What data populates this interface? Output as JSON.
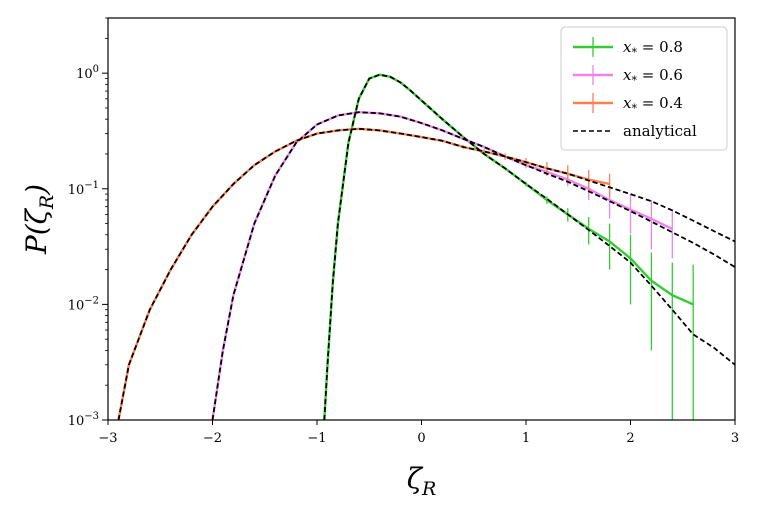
{
  "chart_data": {
    "type": "line",
    "xlabel": "ζ_R",
    "ylabel": "P(ζ_R)",
    "xlim": [
      -3,
      3
    ],
    "ylim": [
      0.001,
      3
    ],
    "yscale": "log",
    "x_ticks": [
      -3,
      -2,
      -1,
      0,
      1,
      2,
      3
    ],
    "x_tick_labels": [
      "−3",
      "−2",
      "−1",
      "0",
      "1",
      "2",
      "3"
    ],
    "y_ticks": [
      0.001,
      0.01,
      0.1,
      1
    ],
    "y_tick_labels": [
      {
        "base": "10",
        "exp": "−3"
      },
      {
        "base": "10",
        "exp": "−2"
      },
      {
        "base": "10",
        "exp": "−1"
      },
      {
        "base": "10",
        "exp": "0"
      }
    ],
    "grid": false,
    "legend": {
      "position": "top-right",
      "entries": [
        {
          "label": "x* = 0.8",
          "color": "#33cc33",
          "style": "errorbar"
        },
        {
          "label": "x* = 0.6",
          "color": "#ee82ee",
          "style": "errorbar"
        },
        {
          "label": "x* = 0.4",
          "color": "#ff7f50",
          "style": "errorbar"
        },
        {
          "label": "analytical",
          "color": "#000000",
          "style": "dashed"
        }
      ]
    },
    "series": [
      {
        "name": "x* = 0.8",
        "color": "#33cc33",
        "style": "errorbar",
        "x": [
          -0.93,
          -0.9,
          -0.85,
          -0.8,
          -0.7,
          -0.6,
          -0.5,
          -0.4,
          -0.3,
          -0.2,
          -0.1,
          0.0,
          0.2,
          0.4,
          0.6,
          0.8,
          1.0,
          1.2,
          1.4,
          1.6,
          1.8,
          2.0,
          2.2,
          2.4,
          2.6
        ],
        "y": [
          0.001,
          0.003,
          0.015,
          0.05,
          0.25,
          0.6,
          0.9,
          0.97,
          0.93,
          0.83,
          0.7,
          0.58,
          0.4,
          0.28,
          0.2,
          0.15,
          0.11,
          0.08,
          0.06,
          0.045,
          0.035,
          0.025,
          0.016,
          0.012,
          0.01
        ],
        "yerr": [
          0,
          0,
          0,
          0,
          0,
          0,
          0,
          0,
          0,
          0,
          0,
          0,
          0,
          0,
          0,
          0,
          0.005,
          0.006,
          0.008,
          0.012,
          0.015,
          0.015,
          0.012,
          0.011,
          0.012
        ]
      },
      {
        "name": "x* = 0.6",
        "color": "#ee82ee",
        "style": "errorbar",
        "x": [
          -2.0,
          -1.9,
          -1.8,
          -1.6,
          -1.4,
          -1.2,
          -1.0,
          -0.8,
          -0.6,
          -0.4,
          -0.2,
          0.0,
          0.2,
          0.4,
          0.6,
          0.8,
          1.0,
          1.2,
          1.4,
          1.6,
          1.8,
          2.0,
          2.2,
          2.4
        ],
        "y": [
          0.001,
          0.004,
          0.012,
          0.05,
          0.13,
          0.25,
          0.36,
          0.43,
          0.46,
          0.45,
          0.42,
          0.37,
          0.32,
          0.27,
          0.23,
          0.19,
          0.16,
          0.14,
          0.12,
          0.1,
          0.08,
          0.066,
          0.055,
          0.045
        ],
        "yerr": [
          0,
          0,
          0,
          0,
          0,
          0,
          0,
          0,
          0,
          0,
          0,
          0,
          0,
          0,
          0,
          0,
          0.01,
          0.01,
          0.015,
          0.02,
          0.025,
          0.025,
          0.025,
          0.02
        ]
      },
      {
        "name": "x* = 0.4",
        "color": "#ff7f50",
        "style": "errorbar",
        "x": [
          -2.9,
          -2.8,
          -2.6,
          -2.4,
          -2.2,
          -2.0,
          -1.8,
          -1.6,
          -1.4,
          -1.2,
          -1.0,
          -0.8,
          -0.6,
          -0.4,
          -0.2,
          0.0,
          0.2,
          0.4,
          0.6,
          0.8,
          1.0,
          1.2,
          1.4,
          1.6,
          1.8
        ],
        "y": [
          0.001,
          0.003,
          0.009,
          0.02,
          0.04,
          0.07,
          0.11,
          0.16,
          0.21,
          0.26,
          0.3,
          0.32,
          0.33,
          0.32,
          0.3,
          0.28,
          0.26,
          0.23,
          0.21,
          0.19,
          0.17,
          0.15,
          0.135,
          0.12,
          0.11
        ],
        "yerr": [
          0,
          0,
          0,
          0,
          0,
          0,
          0,
          0,
          0,
          0,
          0,
          0,
          0,
          0,
          0,
          0,
          0,
          0.008,
          0.01,
          0.012,
          0.015,
          0.02,
          0.025,
          0.025,
          0.025
        ]
      },
      {
        "name": "analytical",
        "color": "#000000",
        "style": "dashed",
        "curves": [
          {
            "x": [
              -0.93,
              -0.9,
              -0.85,
              -0.8,
              -0.7,
              -0.6,
              -0.5,
              -0.4,
              -0.3,
              -0.2,
              -0.1,
              0.0,
              0.2,
              0.4,
              0.6,
              0.8,
              1.0,
              1.2,
              1.4,
              1.6,
              1.8,
              2.0,
              2.2,
              2.4,
              2.6,
              2.8,
              3.0
            ],
            "y": [
              0.001,
              0.003,
              0.015,
              0.05,
              0.25,
              0.6,
              0.9,
              0.97,
              0.93,
              0.83,
              0.7,
              0.58,
              0.4,
              0.28,
              0.2,
              0.15,
              0.11,
              0.082,
              0.06,
              0.044,
              0.032,
              0.023,
              0.0145,
              0.009,
              0.0055,
              0.0042,
              0.003
            ]
          },
          {
            "x": [
              -2.0,
              -1.9,
              -1.8,
              -1.6,
              -1.4,
              -1.2,
              -1.0,
              -0.8,
              -0.6,
              -0.4,
              -0.2,
              0.0,
              0.2,
              0.4,
              0.6,
              0.8,
              1.0,
              1.2,
              1.4,
              1.6,
              1.8,
              2.0,
              2.2,
              2.4,
              2.6,
              2.8,
              3.0
            ],
            "y": [
              0.001,
              0.004,
              0.012,
              0.05,
              0.13,
              0.25,
              0.36,
              0.43,
              0.46,
              0.45,
              0.42,
              0.37,
              0.32,
              0.27,
              0.23,
              0.19,
              0.16,
              0.135,
              0.115,
              0.095,
              0.078,
              0.064,
              0.052,
              0.042,
              0.034,
              0.027,
              0.021
            ]
          },
          {
            "x": [
              -2.9,
              -2.8,
              -2.6,
              -2.4,
              -2.2,
              -2.0,
              -1.8,
              -1.6,
              -1.4,
              -1.2,
              -1.0,
              -0.8,
              -0.6,
              -0.4,
              -0.2,
              0.0,
              0.2,
              0.4,
              0.6,
              0.8,
              1.0,
              1.2,
              1.4,
              1.6,
              1.8,
              2.0,
              2.2,
              2.4,
              2.6,
              2.8,
              3.0
            ],
            "y": [
              0.001,
              0.003,
              0.009,
              0.02,
              0.04,
              0.07,
              0.11,
              0.16,
              0.21,
              0.26,
              0.3,
              0.32,
              0.33,
              0.32,
              0.3,
              0.28,
              0.26,
              0.23,
              0.21,
              0.19,
              0.17,
              0.15,
              0.135,
              0.118,
              0.103,
              0.09,
              0.078,
              0.065,
              0.053,
              0.043,
              0.035
            ]
          }
        ]
      }
    ]
  }
}
